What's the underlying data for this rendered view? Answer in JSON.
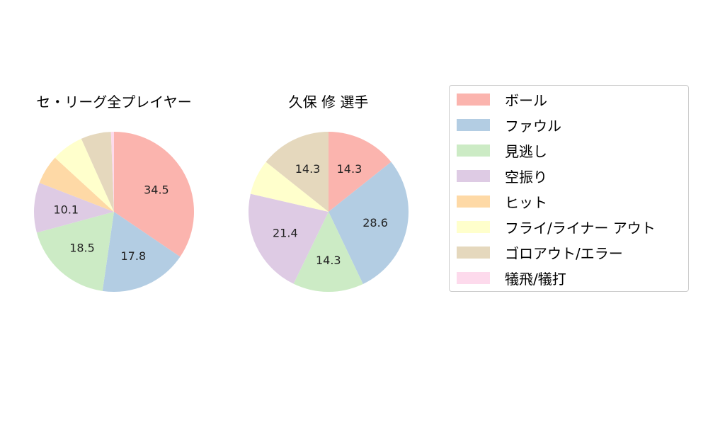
{
  "charts": [
    {
      "title": "セ・リーグ全プレイヤー"
    },
    {
      "title": "久保 修  選手"
    }
  ],
  "legend": {
    "items": [
      {
        "label": "ボール",
        "color": "#fbb4ae"
      },
      {
        "label": "ファウル",
        "color": "#b3cde3"
      },
      {
        "label": "見逃し",
        "color": "#ccebc5"
      },
      {
        "label": "空振り",
        "color": "#decbe4"
      },
      {
        "label": "ヒット",
        "color": "#fed9a6"
      },
      {
        "label": "フライ/ライナー アウト",
        "color": "#ffffcc"
      },
      {
        "label": "ゴロアウト/エラー",
        "color": "#e5d8bd"
      },
      {
        "label": "犠飛/犠打",
        "color": "#fddaec"
      }
    ]
  },
  "chart_data": [
    {
      "type": "pie",
      "title": "セ・リーグ全プレイヤー",
      "categories": [
        "ボール",
        "ファウル",
        "見逃し",
        "空振り",
        "ヒット",
        "フライ/ライナー アウト",
        "ゴロアウト/エラー",
        "犠飛/犠打"
      ],
      "values": [
        34.5,
        17.8,
        18.5,
        10.1,
        5.9,
        6.5,
        6.1,
        0.6
      ],
      "labels_shown": [
        "34.5",
        "17.8",
        "18.5",
        "10.1",
        "",
        "",
        "",
        ""
      ],
      "colors": [
        "#fbb4ae",
        "#b3cde3",
        "#ccebc5",
        "#decbe4",
        "#fed9a6",
        "#ffffcc",
        "#e5d8bd",
        "#fddaec"
      ],
      "start_angle": 90,
      "direction": "clockwise"
    },
    {
      "type": "pie",
      "title": "久保 修  選手",
      "categories": [
        "ボール",
        "ファウル",
        "見逃し",
        "空振り",
        "ヒット",
        "フライ/ライナー アウト",
        "ゴロアウト/エラー",
        "犠飛/犠打"
      ],
      "values": [
        14.3,
        28.6,
        14.3,
        21.4,
        0,
        7.1,
        14.3,
        0
      ],
      "labels_shown": [
        "14.3",
        "28.6",
        "14.3",
        "21.4",
        "",
        "",
        "14.3",
        ""
      ],
      "colors": [
        "#fbb4ae",
        "#b3cde3",
        "#ccebc5",
        "#decbe4",
        "#fed9a6",
        "#ffffcc",
        "#e5d8bd",
        "#fddaec"
      ],
      "start_angle": 90,
      "direction": "clockwise"
    }
  ]
}
